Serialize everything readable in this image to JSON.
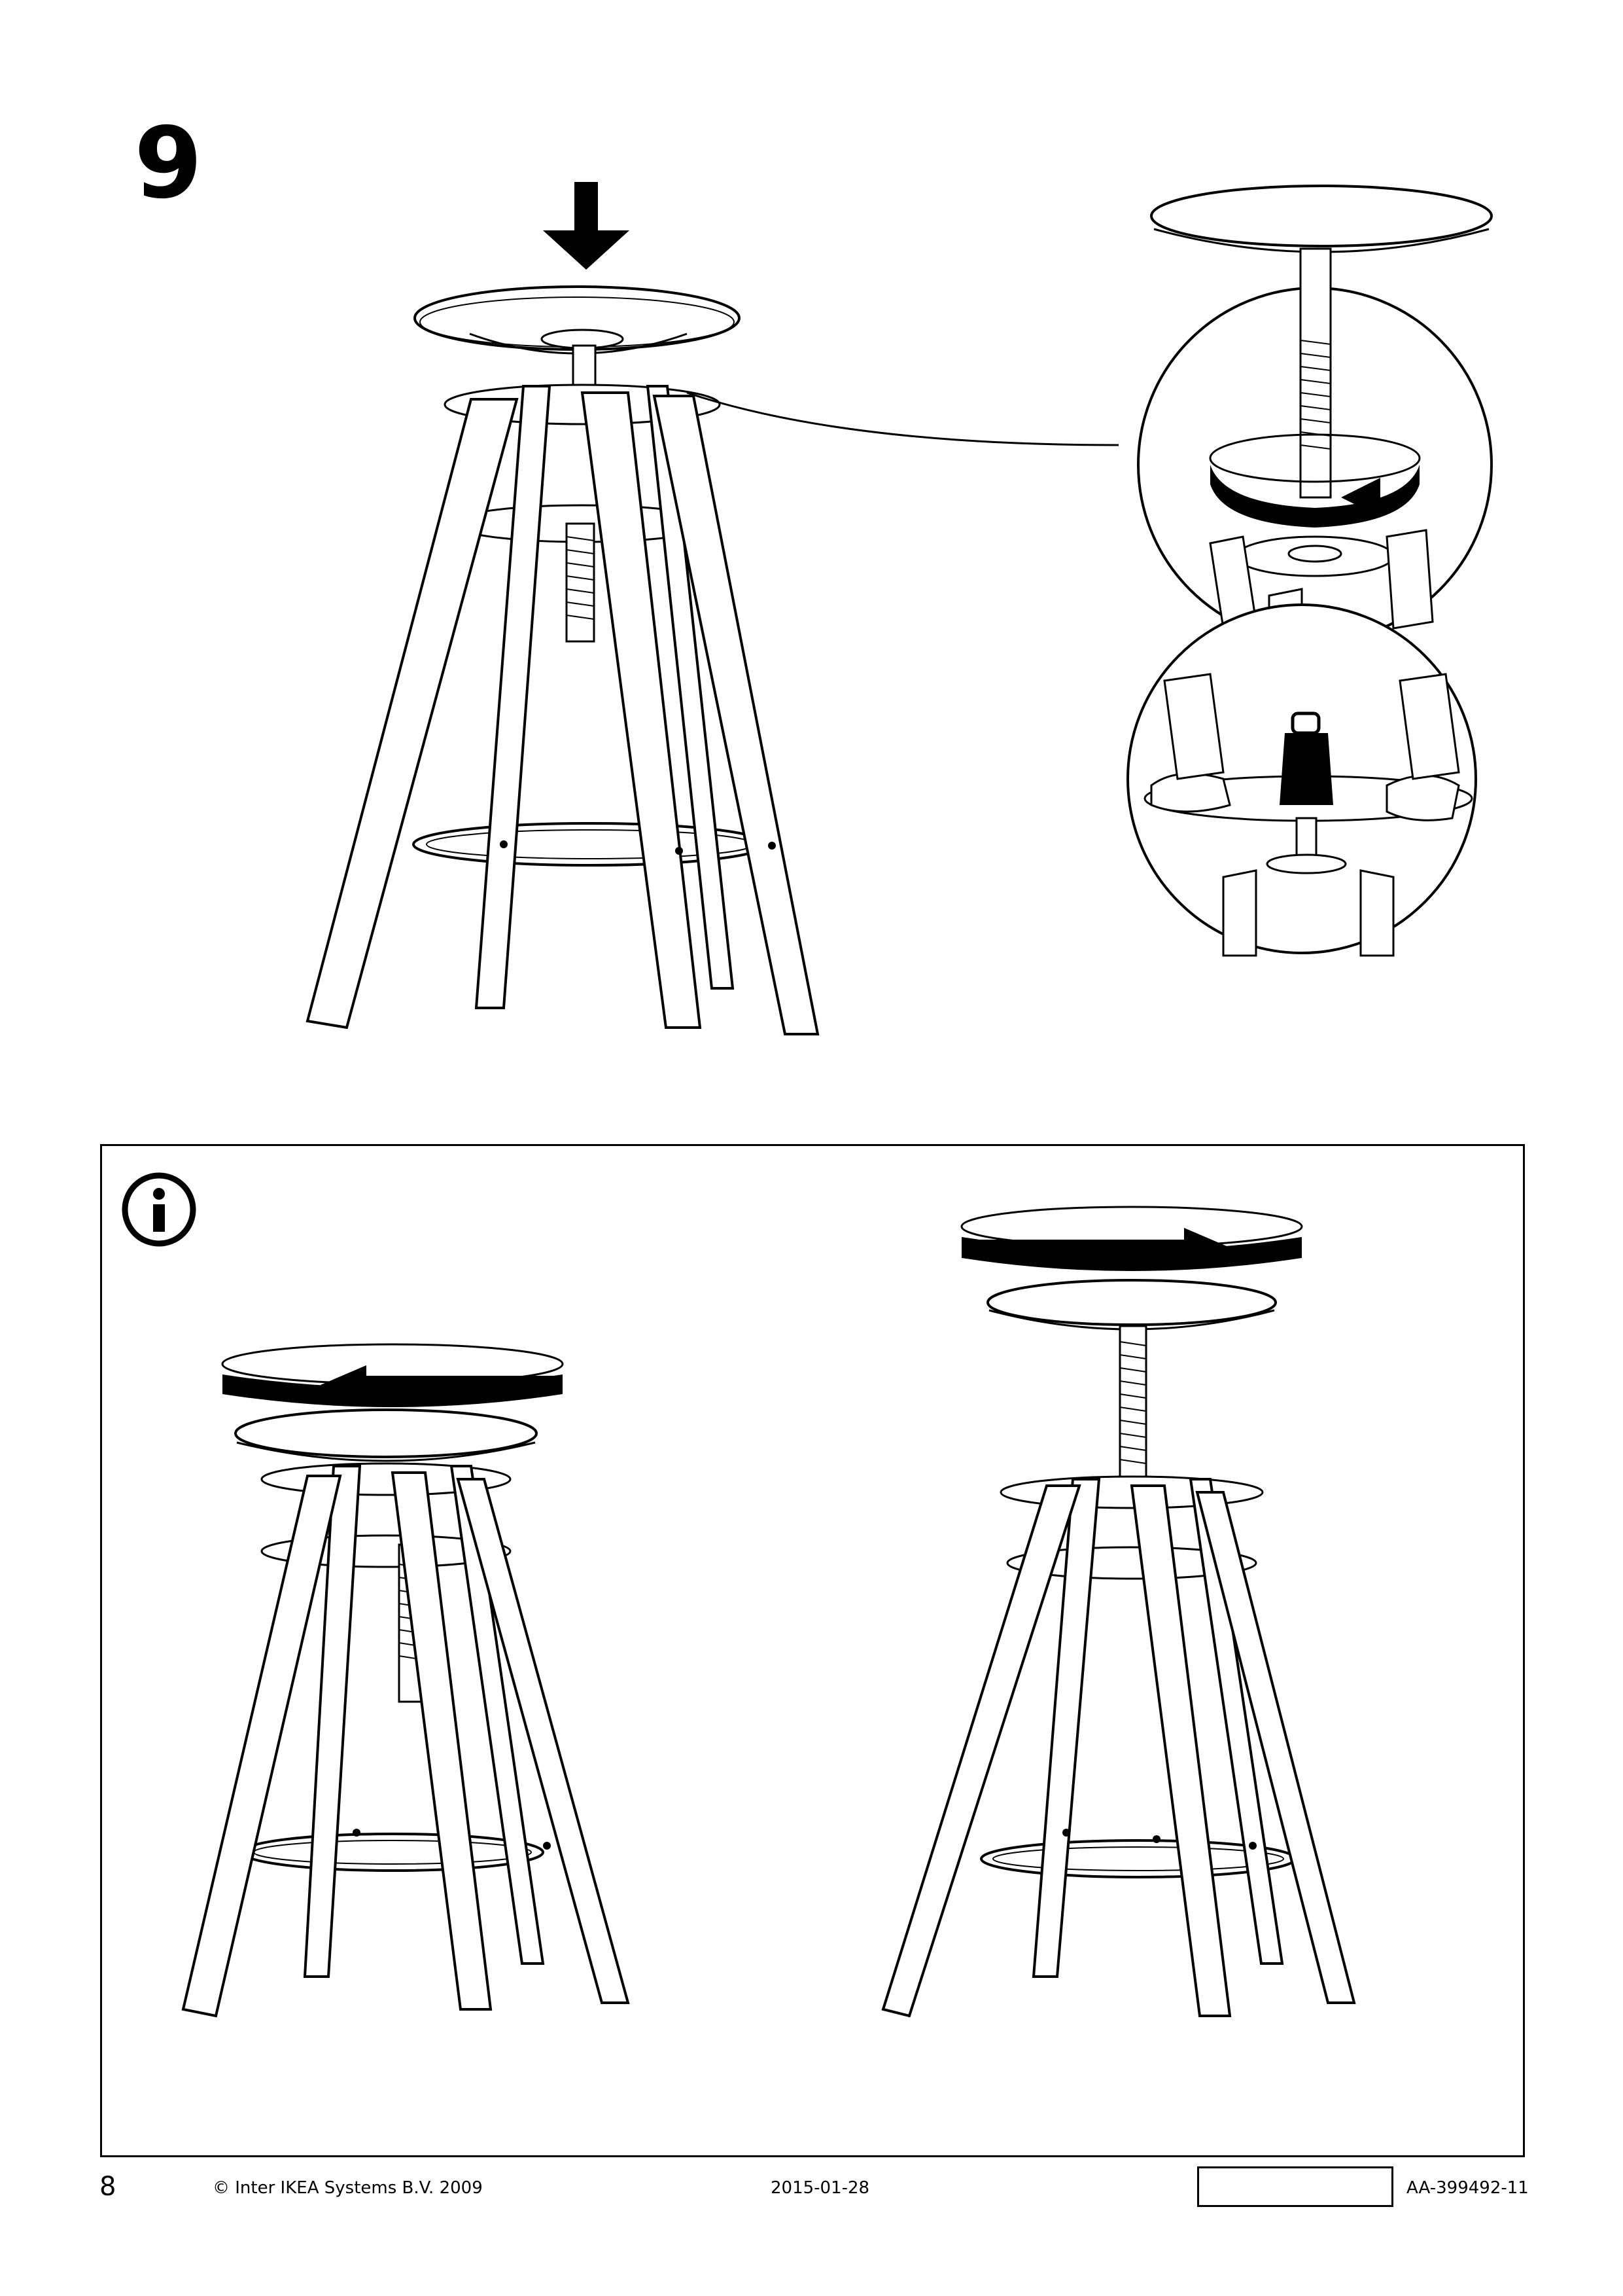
{
  "step": {
    "number": "9"
  },
  "footer": {
    "page_number": "8",
    "copyright": "© Inter IKEA Systems B.V. 2009",
    "date": "2015-01-28",
    "doc_id": "AA-399492-11"
  },
  "icons": {
    "down_arrow": "down-arrow-icon",
    "info": "info-icon",
    "rotate_ccw": "rotate-counterclockwise-icon",
    "rotate_cw": "rotate-clockwise-icon"
  }
}
